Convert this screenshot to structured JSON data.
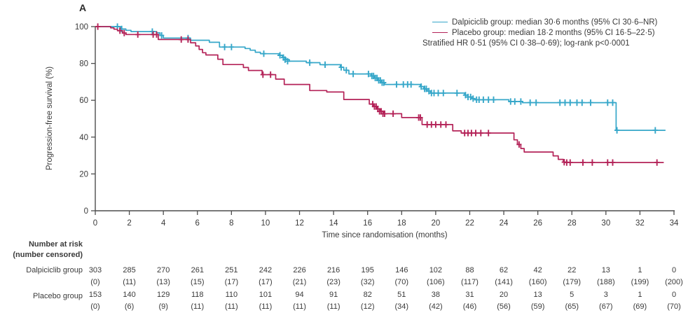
{
  "figure": {
    "panel_label": "A"
  },
  "colors": {
    "dalpiciclib": "#36a7c9",
    "placebo": "#b42358",
    "text": "#3a3a3a",
    "axis": "#4d4d4d"
  },
  "legend": {
    "items": [
      {
        "series": "dalpiciclib",
        "label": "Dalpiciclib group: median 30·6 months (95% CI 30·6–NR)"
      },
      {
        "series": "placebo",
        "label": "Placebo group: median 18·2 months (95% CI 16·5–22·5)"
      }
    ],
    "note": "Stratified HR 0·51 (95% CI 0·38–0·69); log-rank p<0·0001"
  },
  "chart_data": {
    "type": "line",
    "subtype": "kaplan-meier-step",
    "title": "",
    "xlabel": "Time since randomisation (months)",
    "ylabel": "Progression-free survival (%)",
    "xlim": [
      0,
      34
    ],
    "ylim": [
      0,
      100
    ],
    "xticks": [
      0,
      2,
      4,
      6,
      8,
      10,
      12,
      14,
      16,
      18,
      20,
      22,
      24,
      26,
      28,
      30,
      32,
      34
    ],
    "yticks": [
      0,
      20,
      40,
      60,
      80,
      100
    ],
    "grid": false,
    "legend_position": "top-right",
    "series": [
      {
        "name": "Dalpiciclib group",
        "color": "#36a7c9",
        "end_x": 33.5,
        "steps": [
          [
            0,
            100
          ],
          [
            1.5,
            98.7
          ],
          [
            1.8,
            98.0
          ],
          [
            2.1,
            97.3
          ],
          [
            3.6,
            96.6
          ],
          [
            3.8,
            95.2
          ],
          [
            4.0,
            93.8
          ],
          [
            5.6,
            92.6
          ],
          [
            6.7,
            91.5
          ],
          [
            7.3,
            88.9
          ],
          [
            8.8,
            88.1
          ],
          [
            9.1,
            87.2
          ],
          [
            9.4,
            86.1
          ],
          [
            9.7,
            85.3
          ],
          [
            10.8,
            84.4
          ],
          [
            11.0,
            83.2
          ],
          [
            11.2,
            82.1
          ],
          [
            11.4,
            81.2
          ],
          [
            12.4,
            80.4
          ],
          [
            13.2,
            79.3
          ],
          [
            14.4,
            77.9
          ],
          [
            14.6,
            76.3
          ],
          [
            14.9,
            74.3
          ],
          [
            16.2,
            73.2
          ],
          [
            16.4,
            72.1
          ],
          [
            16.6,
            70.8
          ],
          [
            16.8,
            69.6
          ],
          [
            17.0,
            68.6
          ],
          [
            19.1,
            67.4
          ],
          [
            19.3,
            66.2
          ],
          [
            19.5,
            65.0
          ],
          [
            19.7,
            63.9
          ],
          [
            21.7,
            62.8
          ],
          [
            21.9,
            61.8
          ],
          [
            22.1,
            60.9
          ],
          [
            22.3,
            60.3
          ],
          [
            24.3,
            59.3
          ],
          [
            25.1,
            58.7
          ],
          [
            30.6,
            43.7
          ]
        ],
        "censors": [
          [
            1.3,
            100
          ],
          [
            1.55,
            98.7
          ],
          [
            3.35,
            97.3
          ],
          [
            3.9,
            95.2
          ],
          [
            5.45,
            93.8
          ],
          [
            7.6,
            88.9
          ],
          [
            8.0,
            88.9
          ],
          [
            9.9,
            85.3
          ],
          [
            10.85,
            84.4
          ],
          [
            11.05,
            83.2
          ],
          [
            11.15,
            82.1
          ],
          [
            11.3,
            81.2
          ],
          [
            12.6,
            80.4
          ],
          [
            13.5,
            79.3
          ],
          [
            14.45,
            77.9
          ],
          [
            14.75,
            76.3
          ],
          [
            15.15,
            74.3
          ],
          [
            16.05,
            74.3
          ],
          [
            16.25,
            73.2
          ],
          [
            16.35,
            73.2
          ],
          [
            16.45,
            72.1
          ],
          [
            16.55,
            72.1
          ],
          [
            16.65,
            70.8
          ],
          [
            16.75,
            70.8
          ],
          [
            16.85,
            69.6
          ],
          [
            16.95,
            69.6
          ],
          [
            17.7,
            68.6
          ],
          [
            18.1,
            68.6
          ],
          [
            18.35,
            68.6
          ],
          [
            18.55,
            68.6
          ],
          [
            19.15,
            67.4
          ],
          [
            19.35,
            66.2
          ],
          [
            19.45,
            66.2
          ],
          [
            19.6,
            65.0
          ],
          [
            19.75,
            63.9
          ],
          [
            19.9,
            63.9
          ],
          [
            20.15,
            63.9
          ],
          [
            20.45,
            63.9
          ],
          [
            21.25,
            63.9
          ],
          [
            21.75,
            62.8
          ],
          [
            21.9,
            61.8
          ],
          [
            22.05,
            61.8
          ],
          [
            22.2,
            60.9
          ],
          [
            22.4,
            60.3
          ],
          [
            22.55,
            60.3
          ],
          [
            22.8,
            60.3
          ],
          [
            23.1,
            60.3
          ],
          [
            23.4,
            60.3
          ],
          [
            24.4,
            59.3
          ],
          [
            24.65,
            59.3
          ],
          [
            25.0,
            59.3
          ],
          [
            25.55,
            58.7
          ],
          [
            25.9,
            58.7
          ],
          [
            27.3,
            58.7
          ],
          [
            27.6,
            58.7
          ],
          [
            27.9,
            58.7
          ],
          [
            28.3,
            58.7
          ],
          [
            28.6,
            58.7
          ],
          [
            29.1,
            58.7
          ],
          [
            30.1,
            58.7
          ],
          [
            30.4,
            58.7
          ],
          [
            30.65,
            43.7
          ],
          [
            32.9,
            43.7
          ]
        ]
      },
      {
        "name": "Placebo group",
        "color": "#b42358",
        "end_x": 33.4,
        "steps": [
          [
            0,
            100
          ],
          [
            0.9,
            99.3
          ],
          [
            1.1,
            98.6
          ],
          [
            1.3,
            97.8
          ],
          [
            1.6,
            96.5
          ],
          [
            1.8,
            95.7
          ],
          [
            3.7,
            93.0
          ],
          [
            5.6,
            91.2
          ],
          [
            5.9,
            89.5
          ],
          [
            6.1,
            87.6
          ],
          [
            6.3,
            85.8
          ],
          [
            6.5,
            84.6
          ],
          [
            7.2,
            82.3
          ],
          [
            7.5,
            79.4
          ],
          [
            8.7,
            77.8
          ],
          [
            9.0,
            76.2
          ],
          [
            9.8,
            73.9
          ],
          [
            10.6,
            71.5
          ],
          [
            11.1,
            68.6
          ],
          [
            12.6,
            65.3
          ],
          [
            13.6,
            64.5
          ],
          [
            14.6,
            60.4
          ],
          [
            16.1,
            57.9
          ],
          [
            16.35,
            56.6
          ],
          [
            16.55,
            55.3
          ],
          [
            16.75,
            54.0
          ],
          [
            16.95,
            52.7
          ],
          [
            18.0,
            50.6
          ],
          [
            19.2,
            46.8
          ],
          [
            21.0,
            43.4
          ],
          [
            21.5,
            42.2
          ],
          [
            24.6,
            38.5
          ],
          [
            24.8,
            36.0
          ],
          [
            25.0,
            33.8
          ],
          [
            25.2,
            31.9
          ],
          [
            26.9,
            29.8
          ],
          [
            27.2,
            27.9
          ],
          [
            27.5,
            26.4
          ],
          [
            27.8,
            26.2
          ]
        ],
        "censors": [
          [
            0.15,
            100
          ],
          [
            1.45,
            97.8
          ],
          [
            1.7,
            96.5
          ],
          [
            2.5,
            95.7
          ],
          [
            3.4,
            95.7
          ],
          [
            3.6,
            95.7
          ],
          [
            5.05,
            93.0
          ],
          [
            5.45,
            93.0
          ],
          [
            9.85,
            73.9
          ],
          [
            10.3,
            73.9
          ],
          [
            16.3,
            57.9
          ],
          [
            16.4,
            56.6
          ],
          [
            16.5,
            56.6
          ],
          [
            16.6,
            55.3
          ],
          [
            16.7,
            54.0
          ],
          [
            16.8,
            54.0
          ],
          [
            16.9,
            52.7
          ],
          [
            17.0,
            52.7
          ],
          [
            17.5,
            52.7
          ],
          [
            19.0,
            50.6
          ],
          [
            19.1,
            50.6
          ],
          [
            19.5,
            46.8
          ],
          [
            19.75,
            46.8
          ],
          [
            20.0,
            46.8
          ],
          [
            20.3,
            46.8
          ],
          [
            20.6,
            46.8
          ],
          [
            21.7,
            42.2
          ],
          [
            21.9,
            42.2
          ],
          [
            22.1,
            42.2
          ],
          [
            22.35,
            42.2
          ],
          [
            22.65,
            42.2
          ],
          [
            23.1,
            42.2
          ],
          [
            24.9,
            36.0
          ],
          [
            27.55,
            26.4
          ],
          [
            27.7,
            26.2
          ],
          [
            27.9,
            26.2
          ],
          [
            28.65,
            26.2
          ],
          [
            29.2,
            26.2
          ],
          [
            30.1,
            26.2
          ],
          [
            30.4,
            26.2
          ],
          [
            33.0,
            26.2
          ]
        ]
      }
    ]
  },
  "risk_table": {
    "header_line1": "Number at risk",
    "header_line2": "(number censored)",
    "time_points": [
      0,
      2,
      4,
      6,
      8,
      10,
      12,
      14,
      16,
      18,
      20,
      22,
      24,
      26,
      28,
      30,
      32,
      34
    ],
    "rows": [
      {
        "label": "Dalpiciclib group",
        "at_risk": [
          303,
          285,
          270,
          261,
          251,
          242,
          226,
          216,
          195,
          146,
          102,
          88,
          62,
          42,
          22,
          13,
          1,
          0
        ],
        "censored": [
          0,
          11,
          13,
          15,
          17,
          17,
          21,
          23,
          32,
          70,
          106,
          117,
          141,
          160,
          179,
          188,
          199,
          200
        ]
      },
      {
        "label": "Placebo group",
        "at_risk": [
          153,
          140,
          129,
          118,
          110,
          101,
          94,
          91,
          82,
          51,
          38,
          31,
          20,
          13,
          5,
          3,
          1,
          0
        ],
        "censored": [
          0,
          6,
          9,
          11,
          11,
          11,
          11,
          11,
          12,
          34,
          42,
          46,
          56,
          59,
          65,
          67,
          69,
          70
        ]
      }
    ]
  }
}
